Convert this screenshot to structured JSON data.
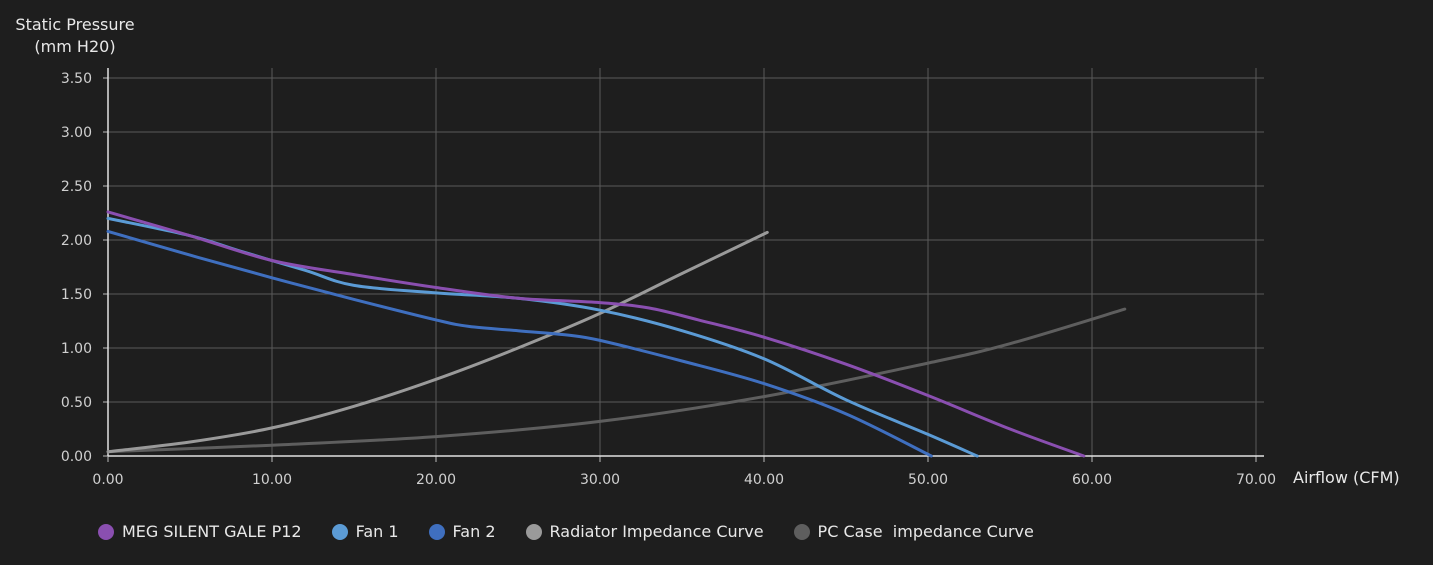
{
  "chart_data": {
    "type": "line",
    "title": "",
    "ylabel_line1": "Static Pressure",
    "ylabel_line2": "(mm H20)",
    "xlabel": "Airflow (CFM)",
    "xlim": [
      0,
      70
    ],
    "ylim": [
      0,
      3.5
    ],
    "xticks": [
      "0.00",
      "10.00",
      "20.00",
      "30.00",
      "40.00",
      "50.00",
      "60.00",
      "70.00"
    ],
    "yticks": [
      "0.00",
      "0.50",
      "1.00",
      "1.50",
      "2.00",
      "2.50",
      "3.00",
      "3.50"
    ],
    "grid": true,
    "legend_position": "bottom",
    "series": [
      {
        "name": "MEG SILENT GALE P12",
        "color": "#8a4fb0",
        "x": [
          0,
          5,
          10,
          15,
          20,
          25,
          30,
          33,
          36,
          40,
          45,
          50,
          55,
          59.5
        ],
        "y": [
          2.26,
          2.04,
          1.81,
          1.68,
          1.56,
          1.46,
          1.42,
          1.37,
          1.26,
          1.1,
          0.85,
          0.56,
          0.25,
          0.0
        ]
      },
      {
        "name": "Fan 1",
        "color": "#5b9bd5",
        "x": [
          0,
          5,
          8,
          12,
          15,
          20,
          25,
          30,
          35,
          40,
          45,
          50,
          53
        ],
        "y": [
          2.2,
          2.04,
          1.9,
          1.72,
          1.58,
          1.51,
          1.46,
          1.35,
          1.16,
          0.9,
          0.52,
          0.2,
          0.0
        ]
      },
      {
        "name": "Fan 2",
        "color": "#3f6fbf",
        "x": [
          0,
          5,
          10,
          15,
          20,
          22,
          25,
          28,
          30,
          35,
          40,
          45,
          50.2
        ],
        "y": [
          2.08,
          1.86,
          1.65,
          1.45,
          1.26,
          1.2,
          1.16,
          1.12,
          1.07,
          0.88,
          0.67,
          0.39,
          0.0
        ]
      },
      {
        "name": "Radiator Impedance Curve",
        "color": "#9a9a9a",
        "x": [
          0,
          5,
          10,
          15,
          20,
          25,
          30,
          35,
          40.2
        ],
        "y": [
          0.04,
          0.13,
          0.26,
          0.46,
          0.71,
          1.0,
          1.32,
          1.69,
          2.07
        ]
      },
      {
        "name": "PC Case  impedance Curve",
        "color": "#5e5e5e",
        "x": [
          0,
          10,
          20,
          30,
          40,
          50,
          55,
          62
        ],
        "y": [
          0.04,
          0.1,
          0.18,
          0.32,
          0.55,
          0.86,
          1.04,
          1.36
        ]
      }
    ]
  }
}
